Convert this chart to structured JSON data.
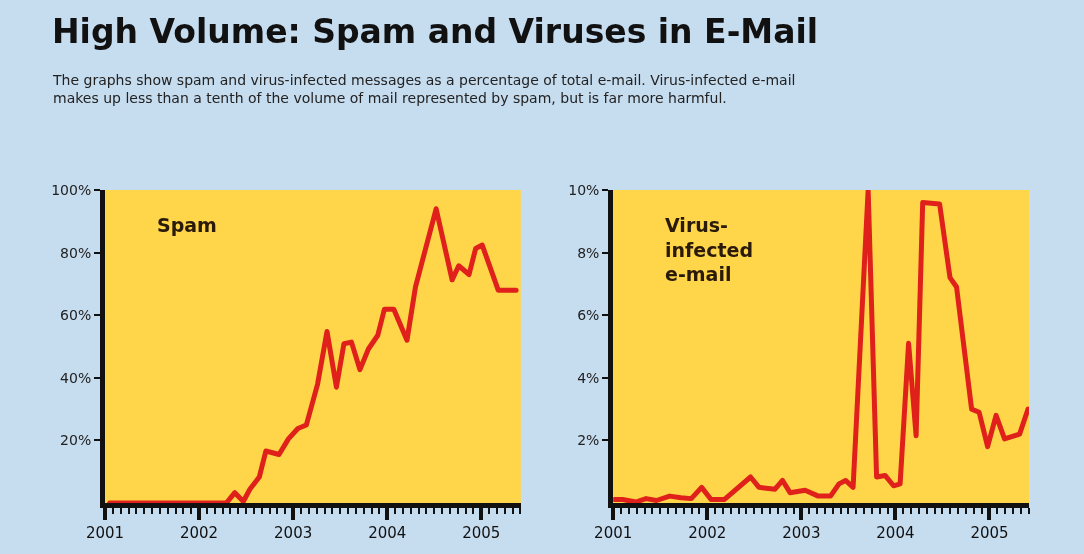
{
  "chart_data": [
    {
      "type": "line",
      "title": "High Volume: Spam and Viruses in E-Mail",
      "subtitle": "The graphs show spam and virus-infected messages as a percentage of total e-mail. Virus-infected e-mail\nmakes up less than a tenth of the volume of mail represented by spam, but is far more harmful.",
      "xlim": [
        2001,
        2005.42
      ],
      "xticks": [
        {
          "value": 2001,
          "label": "2001"
        },
        {
          "value": 2002,
          "label": "2002"
        },
        {
          "value": 2003,
          "label": "2003"
        },
        {
          "value": 2004,
          "label": "2004"
        },
        {
          "value": 2005,
          "label": "2005"
        }
      ],
      "ylim": [
        0,
        100
      ],
      "yticks": [
        {
          "value": 20,
          "label": "20%"
        },
        {
          "value": 40,
          "label": "40%"
        },
        {
          "value": 60,
          "label": "60%"
        },
        {
          "value": 80,
          "label": "80%"
        },
        {
          "value": 100,
          "label": "100%"
        }
      ],
      "grid": false,
      "legend": false,
      "marker": "none",
      "line_style": "solid",
      "series": [
        {
          "name": "Spam",
          "color": "#e0201b",
          "x": [
            2001.05,
            2001.78,
            2002.29,
            2002.38,
            2002.47,
            2002.54,
            2002.64,
            2002.71,
            2002.85,
            2002.95,
            2003.05,
            2003.14,
            2003.26,
            2003.36,
            2003.46,
            2003.54,
            2003.62,
            2003.71,
            2003.8,
            2003.9,
            2003.97,
            2004.07,
            2004.21,
            2004.3,
            2004.52,
            2004.69,
            2004.76,
            2004.87,
            2004.94,
            2005.01,
            2005.18,
            2005.37
          ],
          "values": [
            0,
            0,
            0,
            3.3,
            0.5,
            4.4,
            8.3,
            16.6,
            15.5,
            20.5,
            23.8,
            24.9,
            38,
            54.8,
            37,
            50.9,
            51.4,
            42.6,
            49.2,
            53.6,
            61.9,
            61.9,
            52,
            69,
            94,
            71.3,
            75.8,
            73,
            81.3,
            82.4,
            68,
            68
          ]
        }
      ]
    },
    {
      "type": "line",
      "xlim": [
        2001,
        2005.42
      ],
      "xticks": [
        {
          "value": 2001,
          "label": "2001"
        },
        {
          "value": 2002,
          "label": "2002"
        },
        {
          "value": 2003,
          "label": "2003"
        },
        {
          "value": 2004,
          "label": "2004"
        },
        {
          "value": 2005,
          "label": "2005"
        }
      ],
      "ylim": [
        0,
        10
      ],
      "yticks": [
        {
          "value": 2,
          "label": "2%"
        },
        {
          "value": 4,
          "label": "4%"
        },
        {
          "value": 6,
          "label": "6%"
        },
        {
          "value": 8,
          "label": "8%"
        },
        {
          "value": 10,
          "label": "10%"
        }
      ],
      "grid": false,
      "legend": false,
      "marker": "none",
      "line_style": "solid",
      "series": [
        {
          "name": "Virus-\ninfected\ne-mail",
          "color": "#e0201b",
          "x": [
            2001.01,
            2001.1,
            2001.24,
            2001.35,
            2001.46,
            2001.6,
            2001.72,
            2001.83,
            2001.94,
            2002.04,
            2002.18,
            2002.46,
            2002.55,
            2002.72,
            2002.8,
            2002.88,
            2003.04,
            2003.18,
            2003.31,
            2003.4,
            2003.47,
            2003.55,
            2003.71,
            2003.8,
            2003.89,
            2003.98,
            2004.05,
            2004.14,
            2004.22,
            2004.29,
            2004.47,
            2004.58,
            2004.65,
            2004.81,
            2004.89,
            2004.98,
            2005.07,
            2005.16,
            2005.32,
            2005.41
          ],
          "values": [
            0.11,
            0.11,
            0.03,
            0.14,
            0.08,
            0.22,
            0.17,
            0.14,
            0.5,
            0.11,
            0.11,
            0.83,
            0.5,
            0.44,
            0.72,
            0.33,
            0.41,
            0.22,
            0.22,
            0.61,
            0.72,
            0.5,
            10,
            0.83,
            0.88,
            0.55,
            0.61,
            5.1,
            2.15,
            9.6,
            9.55,
            7.2,
            6.9,
            3.0,
            2.9,
            1.8,
            2.8,
            2.05,
            2.2,
            3.0
          ]
        }
      ]
    }
  ]
}
